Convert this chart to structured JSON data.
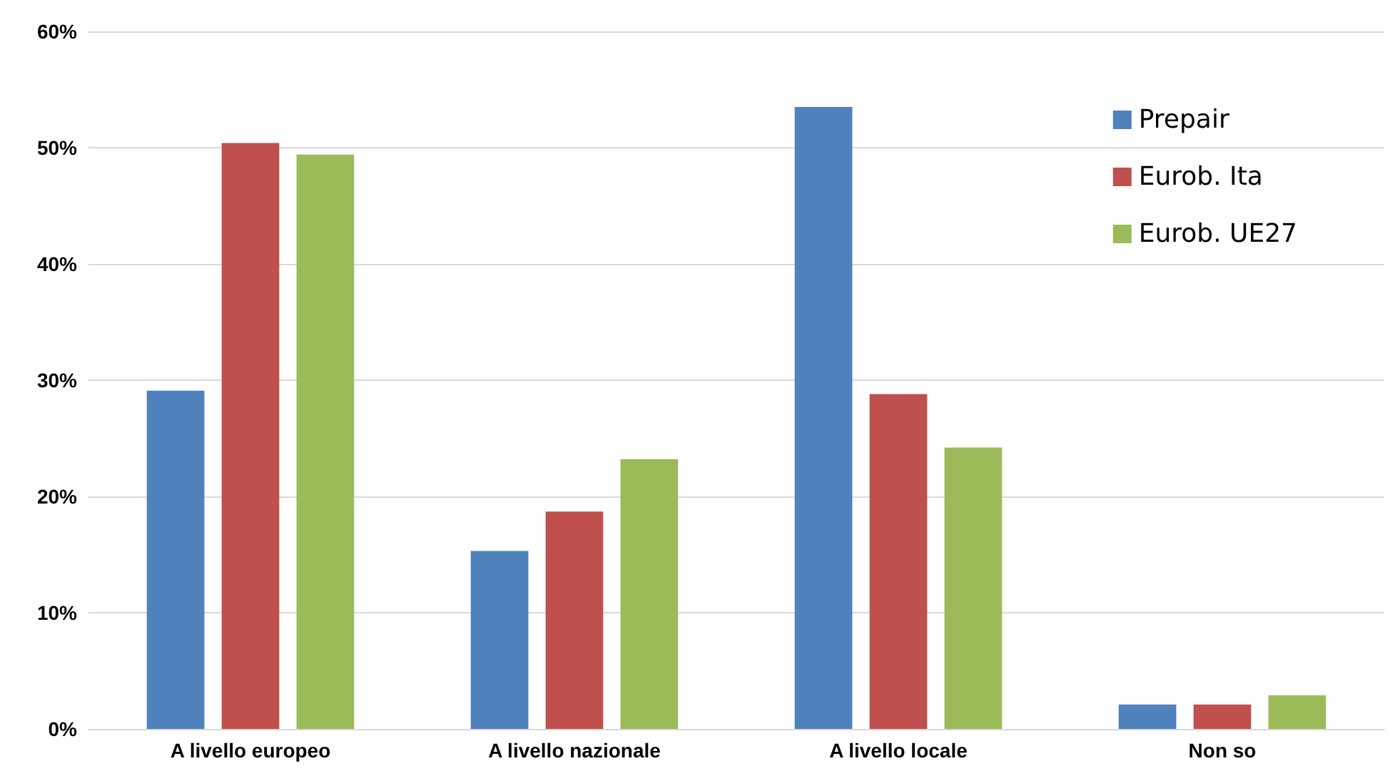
{
  "chart_data": {
    "type": "bar",
    "categories": [
      "A livello europeo",
      "A livello nazionale",
      "A livello locale",
      "Non so"
    ],
    "series": [
      {
        "name": "Prepair",
        "color": "#4f81bd",
        "values": [
          29.1,
          15.3,
          53.5,
          2.1
        ]
      },
      {
        "name": "Eurob. Ita",
        "color": "#c0504d",
        "values": [
          50.4,
          18.7,
          28.8,
          2.1
        ]
      },
      {
        "name": "Eurob. UE27",
        "color": "#9bbb59",
        "values": [
          49.4,
          23.2,
          24.2,
          2.9
        ]
      }
    ],
    "ylim": [
      0,
      60
    ],
    "yticks": [
      {
        "value": 0,
        "label": "0%"
      },
      {
        "value": 10,
        "label": "10%"
      },
      {
        "value": 20,
        "label": "20%"
      },
      {
        "value": 30,
        "label": "30%"
      },
      {
        "value": 40,
        "label": "40%"
      },
      {
        "value": 50,
        "label": "50%"
      },
      {
        "value": 60,
        "label": "60%"
      }
    ],
    "grid": "y",
    "legend": "top right"
  }
}
